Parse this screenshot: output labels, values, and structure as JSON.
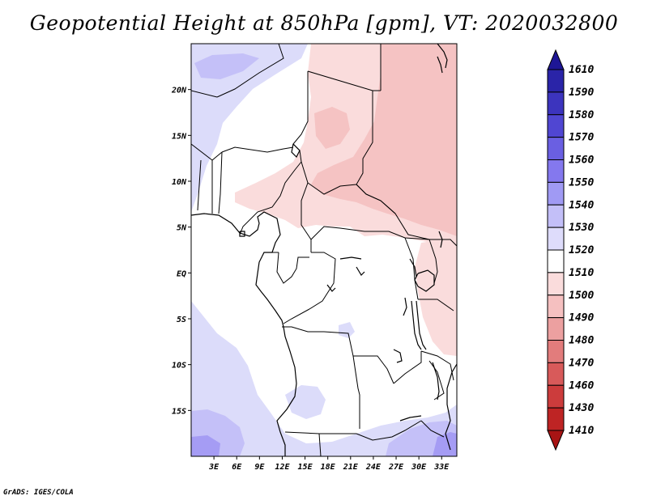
{
  "title": "Geopotential Height at 850hPa [gpm], VT: 2020032800",
  "footer": "GrADS: IGES/COLA",
  "map": {
    "lat_labels": [
      "20N",
      "15N",
      "10N",
      "5N",
      "EQ",
      "5S",
      "10S",
      "15S"
    ],
    "lon_labels": [
      "3E",
      "6E",
      "9E",
      "12E",
      "15E",
      "18E",
      "21E",
      "24E",
      "27E",
      "30E",
      "33E"
    ],
    "lat_values": [
      20,
      15,
      10,
      5,
      0,
      -5,
      -10,
      -15
    ],
    "lon_values": [
      3,
      6,
      9,
      12,
      15,
      18,
      21,
      24,
      27,
      30,
      33
    ],
    "lon_range": [
      0,
      35
    ],
    "lat_range": [
      -20,
      25
    ]
  },
  "colorbar": {
    "labels": [
      "1610",
      "1590",
      "1580",
      "1570",
      "1560",
      "1550",
      "1540",
      "1530",
      "1520",
      "1510",
      "1500",
      "1490",
      "1480",
      "1470",
      "1460",
      "1430",
      "1410"
    ],
    "colors": [
      "#1e1696",
      "#2a24a8",
      "#3c34be",
      "#5046d2",
      "#6a5fe2",
      "#8478ee",
      "#a09af4",
      "#c3bff8",
      "#dedcfb",
      "#ffffff",
      "#fadcdc",
      "#f5c0c0",
      "#eca0a0",
      "#e27c7c",
      "#d85a5a",
      "#cc3c3c",
      "#be2424",
      "#a81414"
    ]
  },
  "colors": {
    "low_blue": "#dcdcfa",
    "mid_blue": "#c4c0f8",
    "deep_blue": "#a59cf4",
    "pink": "#fadcdc",
    "deep_pink": "#f5c3c3"
  }
}
